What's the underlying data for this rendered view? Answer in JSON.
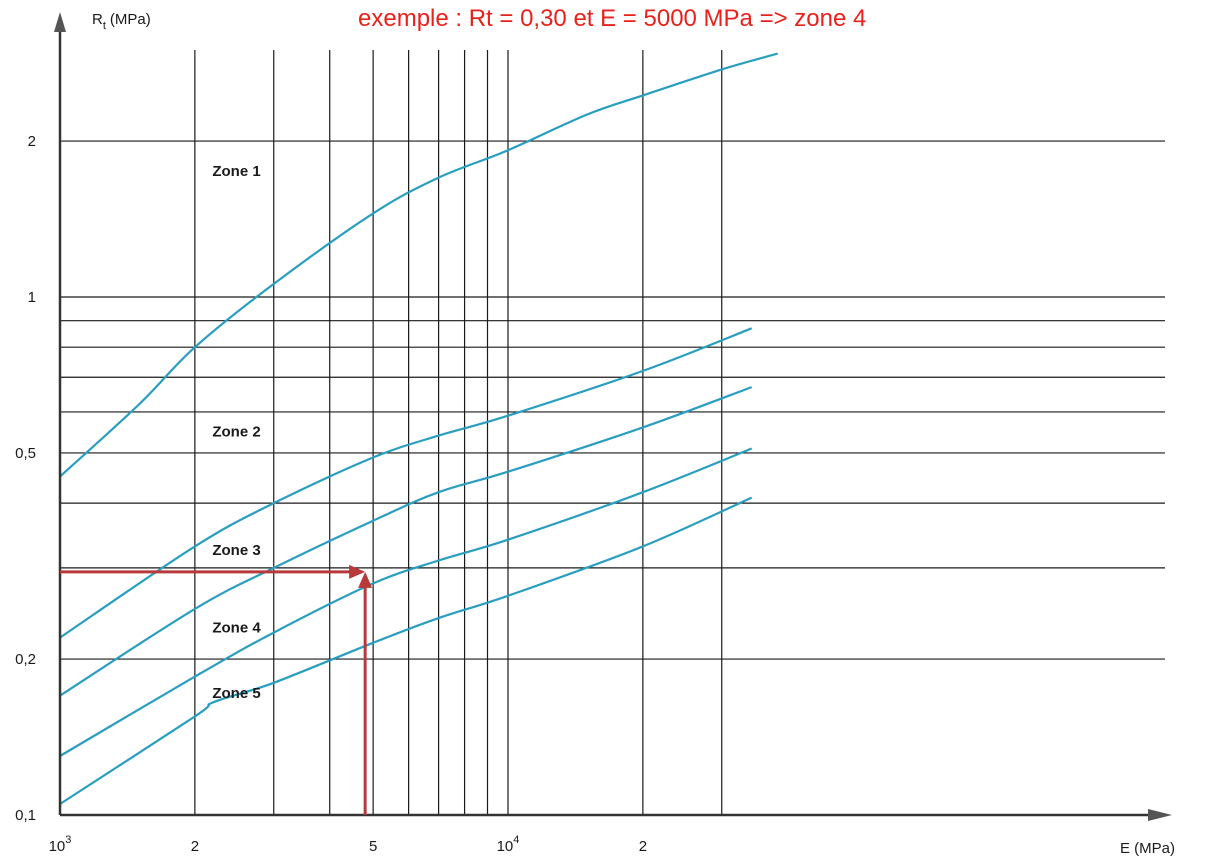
{
  "chart_data": {
    "type": "line",
    "x_scale": "log",
    "y_scale": "log",
    "xlim": [
      1000,
      30000
    ],
    "ylim": [
      0.1,
      3
    ],
    "xlabel": "E (MPa)",
    "ylabel": "R",
    "ylabel_subscript": "t",
    "ylabel_unit": "(MPa)",
    "grid": true,
    "x_gridlines": [
      2000,
      3000,
      4000,
      5000,
      6000,
      7000,
      8000,
      9000,
      10000,
      20000,
      30000
    ],
    "y_gridlines": [
      0.2,
      0.3,
      0.4,
      0.5,
      0.6,
      0.7,
      0.8,
      0.9,
      1,
      2
    ],
    "x_ticks": [
      {
        "value": 1000,
        "base": "10",
        "exp": "3"
      },
      {
        "value": 2000,
        "base": "2",
        "exp": ""
      },
      {
        "value": 5000,
        "base": "5",
        "exp": ""
      },
      {
        "value": 10000,
        "base": "10",
        "exp": "4"
      },
      {
        "value": 20000,
        "base": "2",
        "exp": ""
      }
    ],
    "y_ticks": [
      {
        "value": 0.1,
        "label": "0,1"
      },
      {
        "value": 0.2,
        "label": "0,2"
      },
      {
        "value": 0.5,
        "label": "0,5"
      },
      {
        "value": 1,
        "label": "1"
      },
      {
        "value": 2,
        "label": "2"
      }
    ],
    "boundaries": [
      {
        "x": [
          1000,
          1500,
          2000,
          3000,
          5000,
          7000,
          10000,
          15000,
          20000,
          30000,
          40000
        ],
        "y": [
          0.45,
          0.62,
          0.8,
          1.06,
          1.45,
          1.7,
          1.92,
          2.25,
          2.45,
          2.75,
          2.95
        ]
      },
      {
        "x": [
          1000,
          2000,
          3000,
          5000,
          7000,
          10000,
          20000,
          35000
        ],
        "y": [
          0.22,
          0.33,
          0.4,
          0.49,
          0.54,
          0.59,
          0.72,
          0.87
        ]
      },
      {
        "x": [
          1000,
          2000,
          3000,
          5000,
          7000,
          10000,
          20000,
          35000
        ],
        "y": [
          0.17,
          0.25,
          0.3,
          0.37,
          0.42,
          0.46,
          0.56,
          0.67
        ]
      },
      {
        "x": [
          1000,
          2000,
          3000,
          5000,
          7000,
          10000,
          20000,
          35000
        ],
        "y": [
          0.13,
          0.185,
          0.225,
          0.28,
          0.31,
          0.34,
          0.42,
          0.51
        ]
      },
      {
        "x": [
          1000,
          2000,
          2200,
          3000,
          5000,
          7000,
          10000,
          20000,
          35000
        ],
        "y": [
          0.105,
          0.155,
          0.165,
          0.18,
          0.215,
          0.24,
          0.265,
          0.33,
          0.41
        ]
      }
    ],
    "zone_labels": [
      {
        "text": "Zone 1",
        "x": 2100,
        "y": 1.75
      },
      {
        "text": "Zone 2",
        "x": 2100,
        "y": 0.55
      },
      {
        "text": "Zone 3",
        "x": 2100,
        "y": 0.325
      },
      {
        "text": "Zone 4",
        "x": 2100,
        "y": 0.23
      },
      {
        "text": "Zone 5",
        "x": 2100,
        "y": 0.172
      }
    ],
    "example_point": {
      "x": 5000,
      "y": 0.3
    },
    "annotation": "exemple : Rt = 0,30 et E = 5000 MPa => zone 4",
    "colors": {
      "curve": "#2a9ec0",
      "grid": "#1a1a1a",
      "arrow": "#b8393a",
      "annotation": "#e8221b"
    }
  }
}
